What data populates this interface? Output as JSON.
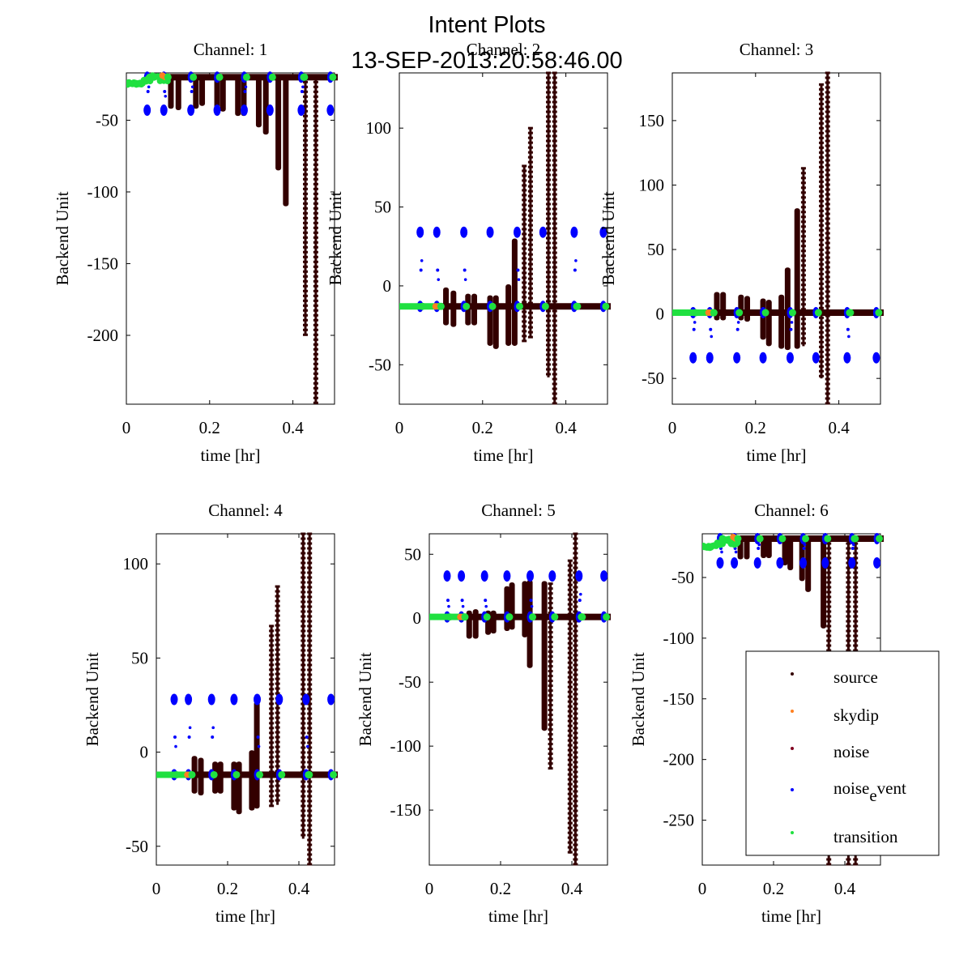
{
  "figure": {
    "title": "Intent Plots",
    "subtitle": "13-SEP-2013:20:58:46.00"
  },
  "colors": {
    "source": "#330000",
    "skydip": "#ff8020",
    "noise": "#800020",
    "noise_event": "#0000ff",
    "transition": "#20e040"
  },
  "chart_data": [
    {
      "type": "scatter",
      "title": "Channel: 1",
      "xlabel": "time [hr]",
      "ylabel": "Backend Unit",
      "xlim": [
        0,
        0.5
      ],
      "ylim": [
        -248,
        -17
      ],
      "xticks": [
        0,
        0.2,
        0.4
      ],
      "yticks": [
        -50,
        -100,
        -150,
        -200
      ],
      "baseline": -20,
      "noise_event_levels": [
        -43,
        -30
      ],
      "source_spikes": [
        {
          "t": 0.107,
          "min": -42,
          "max": -20
        },
        {
          "t": 0.125,
          "min": -43,
          "max": -20
        },
        {
          "t": 0.167,
          "min": -42,
          "max": -20
        },
        {
          "t": 0.182,
          "min": -40,
          "max": -20
        },
        {
          "t": 0.218,
          "min": -44,
          "max": -20
        },
        {
          "t": 0.232,
          "min": -44,
          "max": -20
        },
        {
          "t": 0.268,
          "min": -47,
          "max": -20
        },
        {
          "t": 0.282,
          "min": -47,
          "max": -20
        },
        {
          "t": 0.318,
          "min": -55,
          "max": -20
        },
        {
          "t": 0.335,
          "min": -60,
          "max": -20
        },
        {
          "t": 0.365,
          "min": -85,
          "max": -20
        },
        {
          "t": 0.383,
          "min": -110,
          "max": -20
        },
        {
          "t": 0.43,
          "min": -200,
          "max": -20
        },
        {
          "t": 0.455,
          "min": -248,
          "max": -20
        }
      ],
      "transition_start": -22
    },
    {
      "type": "scatter",
      "title": "Channel: 2",
      "xlabel": "time [hr]",
      "ylabel": "Backend Unit",
      "xlim": [
        0,
        0.5
      ],
      "ylim": [
        -75,
        135
      ],
      "xticks": [
        0,
        0.2,
        0.4
      ],
      "yticks": [
        100,
        50,
        0,
        -50
      ],
      "baseline": -13,
      "noise_event_levels": [
        34,
        10
      ],
      "source_spikes": [
        {
          "t": 0.112,
          "min": -25,
          "max": -1
        },
        {
          "t": 0.13,
          "min": -26,
          "max": -3
        },
        {
          "t": 0.165,
          "min": -25,
          "max": -5
        },
        {
          "t": 0.18,
          "min": -25,
          "max": -5
        },
        {
          "t": 0.218,
          "min": -38,
          "max": -6
        },
        {
          "t": 0.232,
          "min": -40,
          "max": -6
        },
        {
          "t": 0.262,
          "min": -38,
          "max": 1
        },
        {
          "t": 0.277,
          "min": -38,
          "max": 30
        },
        {
          "t": 0.3,
          "min": -35,
          "max": 76
        },
        {
          "t": 0.315,
          "min": -33,
          "max": 100
        },
        {
          "t": 0.358,
          "min": -58,
          "max": 135
        },
        {
          "t": 0.373,
          "min": -75,
          "max": 135
        }
      ],
      "transition_start": -13
    },
    {
      "type": "scatter",
      "title": "Channel: 3",
      "xlabel": "time [hr]",
      "ylabel": "Backend Unit",
      "xlim": [
        0,
        0.5
      ],
      "ylim": [
        -70,
        187
      ],
      "xticks": [
        0,
        0.2,
        0.4
      ],
      "yticks": [
        150,
        100,
        50,
        0,
        -50
      ],
      "baseline": 1,
      "noise_event_levels": [
        -34,
        -12
      ],
      "source_spikes": [
        {
          "t": 0.107,
          "min": -5,
          "max": 17
        },
        {
          "t": 0.122,
          "min": -5,
          "max": 17
        },
        {
          "t": 0.165,
          "min": -5,
          "max": 15
        },
        {
          "t": 0.18,
          "min": -6,
          "max": 14
        },
        {
          "t": 0.218,
          "min": -20,
          "max": 12
        },
        {
          "t": 0.232,
          "min": -25,
          "max": 11
        },
        {
          "t": 0.262,
          "min": -27,
          "max": 15
        },
        {
          "t": 0.277,
          "min": -28,
          "max": 36
        },
        {
          "t": 0.3,
          "min": -27,
          "max": 82
        },
        {
          "t": 0.315,
          "min": -25,
          "max": 113
        },
        {
          "t": 0.358,
          "min": -50,
          "max": 178
        },
        {
          "t": 0.373,
          "min": -70,
          "max": 187
        }
      ],
      "transition_start": 1
    },
    {
      "type": "scatter",
      "title": "Channel: 4",
      "xlabel": "time [hr]",
      "ylabel": "Backend Unit",
      "xlim": [
        0,
        0.5
      ],
      "ylim": [
        -60,
        116
      ],
      "xticks": [
        0,
        0.2,
        0.4
      ],
      "yticks": [
        100,
        50,
        0,
        -50
      ],
      "baseline": -12,
      "noise_event_levels": [
        28,
        8
      ],
      "source_spikes": [
        {
          "t": 0.107,
          "min": -22,
          "max": -2
        },
        {
          "t": 0.125,
          "min": -23,
          "max": -3
        },
        {
          "t": 0.165,
          "min": -22,
          "max": -5
        },
        {
          "t": 0.18,
          "min": -22,
          "max": -5
        },
        {
          "t": 0.218,
          "min": -31,
          "max": -5
        },
        {
          "t": 0.232,
          "min": -33,
          "max": -5
        },
        {
          "t": 0.268,
          "min": -31,
          "max": 1
        },
        {
          "t": 0.282,
          "min": -30,
          "max": 27
        },
        {
          "t": 0.323,
          "min": -29,
          "max": 67
        },
        {
          "t": 0.34,
          "min": -28,
          "max": 88
        },
        {
          "t": 0.412,
          "min": -46,
          "max": 116
        },
        {
          "t": 0.43,
          "min": -60,
          "max": 116
        }
      ],
      "transition_start": -12
    },
    {
      "type": "scatter",
      "title": "Channel: 5",
      "xlabel": "time [hr]",
      "ylabel": "Backend Unit",
      "xlim": [
        0,
        0.5
      ],
      "ylim": [
        -193,
        66
      ],
      "xticks": [
        0,
        0.2,
        0.4
      ],
      "yticks": [
        50,
        0,
        -50,
        -100,
        -150
      ],
      "baseline": 1,
      "noise_event_levels": [
        33,
        14
      ],
      "source_spikes": [
        {
          "t": 0.112,
          "min": -16,
          "max": 6
        },
        {
          "t": 0.13,
          "min": -16,
          "max": 7
        },
        {
          "t": 0.165,
          "min": -13,
          "max": 6
        },
        {
          "t": 0.18,
          "min": -12,
          "max": 6
        },
        {
          "t": 0.218,
          "min": -10,
          "max": 25
        },
        {
          "t": 0.232,
          "min": -9,
          "max": 28
        },
        {
          "t": 0.268,
          "min": -15,
          "max": 29
        },
        {
          "t": 0.282,
          "min": -39,
          "max": 30
        },
        {
          "t": 0.323,
          "min": -88,
          "max": 29
        },
        {
          "t": 0.34,
          "min": -118,
          "max": 27
        },
        {
          "t": 0.395,
          "min": -184,
          "max": 45
        },
        {
          "t": 0.41,
          "min": -193,
          "max": 66
        }
      ],
      "transition_start": 1
    },
    {
      "type": "scatter",
      "title": "Channel: 6",
      "xlabel": "time [hr]",
      "ylabel": "Backend Unit",
      "xlim": [
        0,
        0.5
      ],
      "ylim": [
        -287,
        -14
      ],
      "xticks": [
        0,
        0.2,
        0.4
      ],
      "yticks": [
        -50,
        -100,
        -150,
        -200,
        -250
      ],
      "baseline": -18,
      "noise_event_levels": [
        -38,
        -26
      ],
      "source_spikes": [
        {
          "t": 0.107,
          "min": -35,
          "max": -18
        },
        {
          "t": 0.125,
          "min": -35,
          "max": -18
        },
        {
          "t": 0.172,
          "min": -34,
          "max": -18
        },
        {
          "t": 0.187,
          "min": -34,
          "max": -18
        },
        {
          "t": 0.232,
          "min": -40,
          "max": -18
        },
        {
          "t": 0.247,
          "min": -44,
          "max": -18
        },
        {
          "t": 0.28,
          "min": -53,
          "max": -18
        },
        {
          "t": 0.297,
          "min": -62,
          "max": -18
        },
        {
          "t": 0.34,
          "min": -92,
          "max": -18
        },
        {
          "t": 0.355,
          "min": -287,
          "max": -18
        },
        {
          "t": 0.41,
          "min": -287,
          "max": -18
        },
        {
          "t": 0.43,
          "min": -287,
          "max": -18
        }
      ],
      "transition_start": -22
    }
  ],
  "legend": {
    "placement": "bottom-right of Channel 6",
    "entries": [
      {
        "key": "source",
        "label": "source"
      },
      {
        "key": "skydip",
        "label": "skydip"
      },
      {
        "key": "noise",
        "label": "noise"
      },
      {
        "key": "noise_event",
        "label_main": "noise",
        "label_sub": "e",
        "label_rest": "vent"
      },
      {
        "key": "transition",
        "label": "transition"
      }
    ]
  },
  "noise_event_times": [
    0.05,
    0.09,
    0.155,
    0.218,
    0.283,
    0.345,
    0.42,
    0.49
  ]
}
